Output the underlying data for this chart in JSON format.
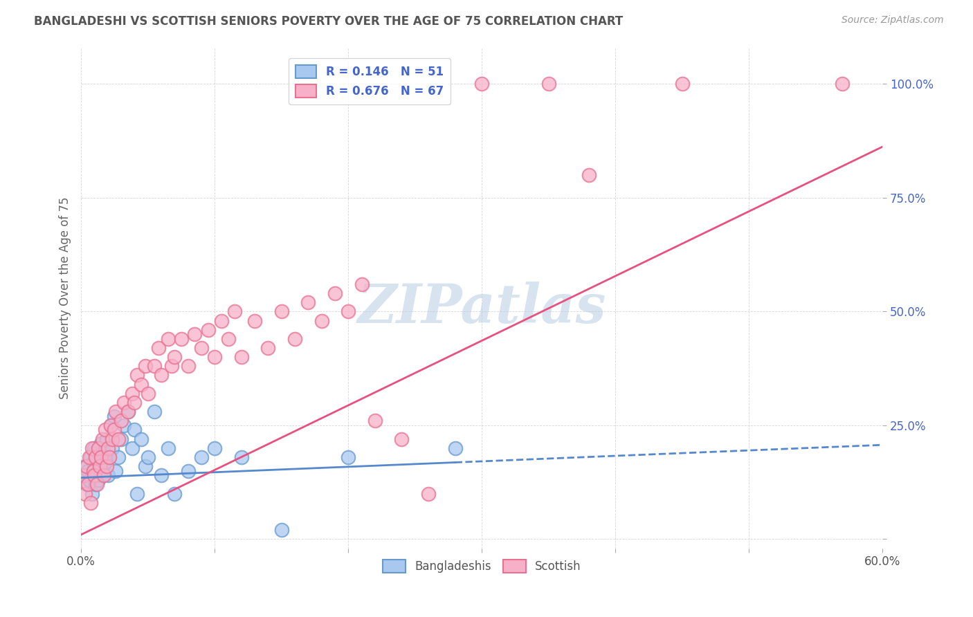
{
  "title": "BANGLADESHI VS SCOTTISH SENIORS POVERTY OVER THE AGE OF 75 CORRELATION CHART",
  "source": "Source: ZipAtlas.com",
  "ylabel": "Seniors Poverty Over the Age of 75",
  "xlim": [
    0.0,
    0.6
  ],
  "ylim": [
    -0.02,
    1.08
  ],
  "bangladeshi_R": 0.146,
  "bangladeshi_N": 51,
  "scottish_R": 0.676,
  "scottish_N": 67,
  "blue_face": "#a8c8f0",
  "blue_edge": "#6699cc",
  "pink_face": "#f8b0c8",
  "pink_edge": "#e87090",
  "blue_line": "#5588cc",
  "pink_line": "#e85080",
  "legend_text_color": "#4466cc",
  "yticklabel_color": "#4466cc",
  "title_color": "#555555",
  "watermark": "ZIPatlas",
  "bangladeshi_x": [
    0.002,
    0.003,
    0.004,
    0.005,
    0.006,
    0.007,
    0.008,
    0.009,
    0.01,
    0.01,
    0.01,
    0.011,
    0.011,
    0.012,
    0.012,
    0.013,
    0.014,
    0.014,
    0.015,
    0.015,
    0.016,
    0.017,
    0.018,
    0.019,
    0.02,
    0.021,
    0.022,
    0.023,
    0.025,
    0.026,
    0.028,
    0.03,
    0.032,
    0.035,
    0.038,
    0.04,
    0.042,
    0.045,
    0.048,
    0.05,
    0.055,
    0.06,
    0.065,
    0.07,
    0.08,
    0.09,
    0.1,
    0.12,
    0.15,
    0.2,
    0.28
  ],
  "bangladeshi_y": [
    0.14,
    0.16,
    0.12,
    0.15,
    0.13,
    0.18,
    0.1,
    0.17,
    0.15,
    0.19,
    0.2,
    0.12,
    0.16,
    0.14,
    0.18,
    0.13,
    0.2,
    0.15,
    0.16,
    0.21,
    0.14,
    0.19,
    0.17,
    0.22,
    0.14,
    0.18,
    0.25,
    0.2,
    0.27,
    0.15,
    0.18,
    0.22,
    0.25,
    0.28,
    0.2,
    0.24,
    0.1,
    0.22,
    0.16,
    0.18,
    0.28,
    0.14,
    0.2,
    0.1,
    0.15,
    0.18,
    0.2,
    0.18,
    0.02,
    0.18,
    0.2
  ],
  "scottish_x": [
    0.002,
    0.003,
    0.004,
    0.005,
    0.006,
    0.007,
    0.008,
    0.009,
    0.01,
    0.011,
    0.012,
    0.013,
    0.014,
    0.015,
    0.016,
    0.017,
    0.018,
    0.019,
    0.02,
    0.021,
    0.022,
    0.023,
    0.025,
    0.026,
    0.028,
    0.03,
    0.032,
    0.035,
    0.038,
    0.04,
    0.042,
    0.045,
    0.048,
    0.05,
    0.055,
    0.058,
    0.06,
    0.065,
    0.068,
    0.07,
    0.075,
    0.08,
    0.085,
    0.09,
    0.095,
    0.1,
    0.105,
    0.11,
    0.115,
    0.12,
    0.13,
    0.14,
    0.15,
    0.16,
    0.17,
    0.18,
    0.19,
    0.2,
    0.21,
    0.22,
    0.24,
    0.26,
    0.3,
    0.35,
    0.38,
    0.45,
    0.57
  ],
  "scottish_y": [
    0.14,
    0.1,
    0.16,
    0.12,
    0.18,
    0.08,
    0.2,
    0.15,
    0.14,
    0.18,
    0.12,
    0.2,
    0.16,
    0.18,
    0.22,
    0.14,
    0.24,
    0.16,
    0.2,
    0.18,
    0.25,
    0.22,
    0.24,
    0.28,
    0.22,
    0.26,
    0.3,
    0.28,
    0.32,
    0.3,
    0.36,
    0.34,
    0.38,
    0.32,
    0.38,
    0.42,
    0.36,
    0.44,
    0.38,
    0.4,
    0.44,
    0.38,
    0.45,
    0.42,
    0.46,
    0.4,
    0.48,
    0.44,
    0.5,
    0.4,
    0.48,
    0.42,
    0.5,
    0.44,
    0.52,
    0.48,
    0.54,
    0.5,
    0.56,
    0.26,
    0.22,
    0.1,
    1.0,
    1.0,
    0.8,
    1.0,
    1.0
  ],
  "blue_trendline_slope": 0.12,
  "blue_trendline_intercept": 0.135,
  "pink_trendline_slope": 1.42,
  "pink_trendline_intercept": 0.01
}
